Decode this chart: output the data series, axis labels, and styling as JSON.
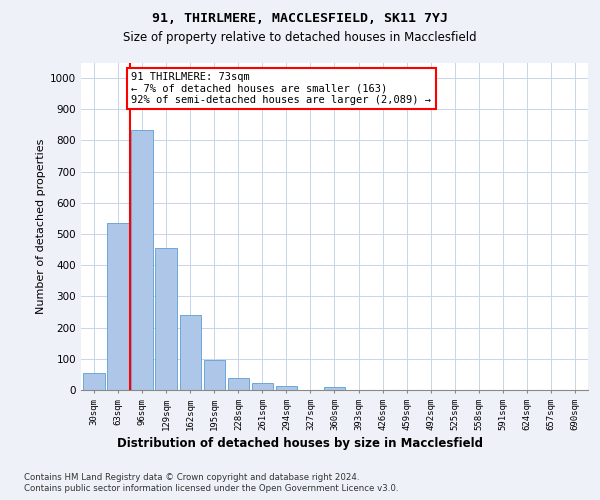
{
  "title1": "91, THIRLMERE, MACCLESFIELD, SK11 7YJ",
  "title2": "Size of property relative to detached houses in Macclesfield",
  "xlabel": "Distribution of detached houses by size in Macclesfield",
  "ylabel": "Number of detached properties",
  "bar_labels": [
    "30sqm",
    "63sqm",
    "96sqm",
    "129sqm",
    "162sqm",
    "195sqm",
    "228sqm",
    "261sqm",
    "294sqm",
    "327sqm",
    "360sqm",
    "393sqm",
    "426sqm",
    "459sqm",
    "492sqm",
    "525sqm",
    "558sqm",
    "591sqm",
    "624sqm",
    "657sqm",
    "690sqm"
  ],
  "bar_values": [
    55,
    535,
    835,
    455,
    240,
    97,
    37,
    22,
    13,
    0,
    9,
    0,
    0,
    0,
    0,
    0,
    0,
    0,
    0,
    0,
    0
  ],
  "bar_color": "#aec6e8",
  "bar_edge_color": "#5a9fd4",
  "vline_color": "red",
  "vline_pos": 1.5,
  "ylim": [
    0,
    1050
  ],
  "yticks": [
    0,
    100,
    200,
    300,
    400,
    500,
    600,
    700,
    800,
    900,
    1000
  ],
  "annotation_text": "91 THIRLMERE: 73sqm\n← 7% of detached houses are smaller (163)\n92% of semi-detached houses are larger (2,089) →",
  "annotation_box_color": "white",
  "annotation_box_edge": "red",
  "footer1": "Contains HM Land Registry data © Crown copyright and database right 2024.",
  "footer2": "Contains public sector information licensed under the Open Government Licence v3.0.",
  "bg_color": "#eef2f8",
  "plot_bg_color": "white",
  "grid_color": "#c8d4e8"
}
